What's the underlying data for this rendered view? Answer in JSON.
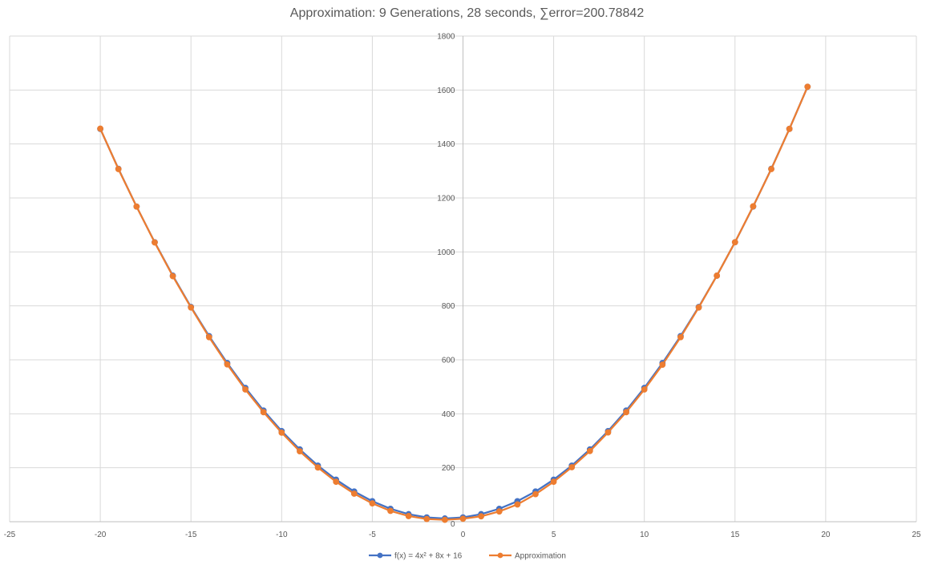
{
  "chart_data": {
    "type": "scatter",
    "title": "Approximation: 9 Generations, 28 seconds, ∑error=200.78842",
    "xlabel": "",
    "ylabel": "",
    "xlim": [
      -25,
      25
    ],
    "ylim": [
      0,
      1800
    ],
    "xticks": [
      -25,
      -20,
      -15,
      -10,
      -5,
      0,
      5,
      10,
      15,
      20,
      25
    ],
    "yticks": [
      200,
      400,
      600,
      800,
      1000,
      1200,
      1400,
      1600,
      1800
    ],
    "x_zero_label": "0",
    "grid": true,
    "legend_position": "bottom",
    "x": [
      -20,
      -19,
      -18,
      -17,
      -16,
      -15,
      -14,
      -13,
      -12,
      -11,
      -10,
      -9,
      -8,
      -7,
      -6,
      -5,
      -4,
      -3,
      -2,
      -1,
      0,
      1,
      2,
      3,
      4,
      5,
      6,
      7,
      8,
      9,
      10,
      11,
      12,
      13,
      14,
      15,
      16,
      17,
      18,
      19
    ],
    "series": [
      {
        "name": "f(x) = 4x² + 8x + 16",
        "color": "#4472C4",
        "values": [
          1456,
          1308,
          1168,
          1036,
          912,
          796,
          688,
          588,
          496,
          412,
          336,
          268,
          208,
          156,
          112,
          76,
          48,
          28,
          16,
          12,
          16,
          28,
          48,
          76,
          112,
          156,
          208,
          268,
          336,
          412,
          496,
          588,
          688,
          796,
          912,
          1036,
          1168,
          1308,
          1456,
          1612
        ]
      },
      {
        "name": "Approximation",
        "color": "#ED7D31",
        "values": [
          1457,
          1307,
          1168,
          1035,
          910,
          794,
          684,
          583,
          490,
          406,
          330,
          261,
          201,
          148,
          104,
          68,
          40,
          21,
          10,
          7,
          11,
          20,
          38,
          64,
          102,
          148,
          202,
          262,
          331,
          406,
          490,
          582,
          684,
          794,
          912,
          1036,
          1169,
          1307,
          1456,
          1612
        ]
      }
    ]
  }
}
